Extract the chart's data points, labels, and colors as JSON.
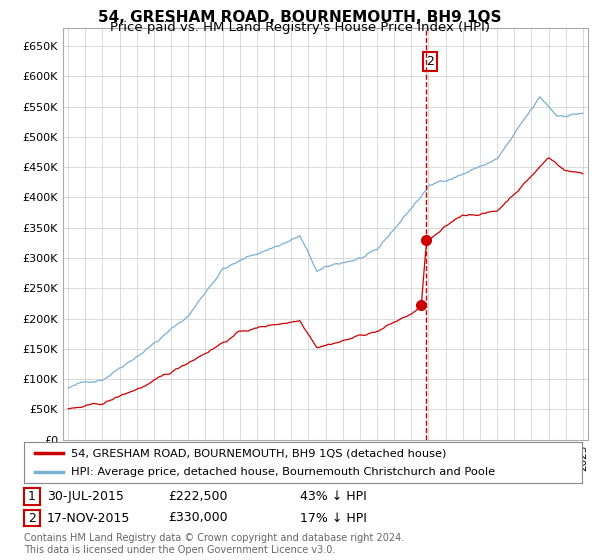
{
  "title": "54, GRESHAM ROAD, BOURNEMOUTH, BH9 1QS",
  "subtitle": "Price paid vs. HM Land Registry's House Price Index (HPI)",
  "ylim": [
    0,
    680000
  ],
  "yticks": [
    0,
    50000,
    100000,
    150000,
    200000,
    250000,
    300000,
    350000,
    400000,
    450000,
    500000,
    550000,
    600000,
    650000
  ],
  "ytick_labels": [
    "£0",
    "£50K",
    "£100K",
    "£150K",
    "£200K",
    "£250K",
    "£300K",
    "£350K",
    "£400K",
    "£450K",
    "£500K",
    "£550K",
    "£600K",
    "£650K"
  ],
  "hpi_color": "#7ab0d4",
  "price_color": "#cc0000",
  "vline_color": "#cc0000",
  "point1_date": 2015.57,
  "point1_price": 222500,
  "point2_date": 2015.88,
  "point2_price": 330000,
  "vline_x": 2015.88,
  "legend_line1": "54, GRESHAM ROAD, BOURNEMOUTH, BH9 1QS (detached house)",
  "legend_line2": "HPI: Average price, detached house, Bournemouth Christchurch and Poole",
  "table_row1": [
    "1",
    "30-JUL-2015",
    "£222,500",
    "43% ↓ HPI"
  ],
  "table_row2": [
    "2",
    "17-NOV-2015",
    "£330,000",
    "17% ↓ HPI"
  ],
  "footer": "Contains HM Land Registry data © Crown copyright and database right 2024.\nThis data is licensed under the Open Government Licence v3.0.",
  "background_color": "#ffffff",
  "grid_color": "#cccccc"
}
